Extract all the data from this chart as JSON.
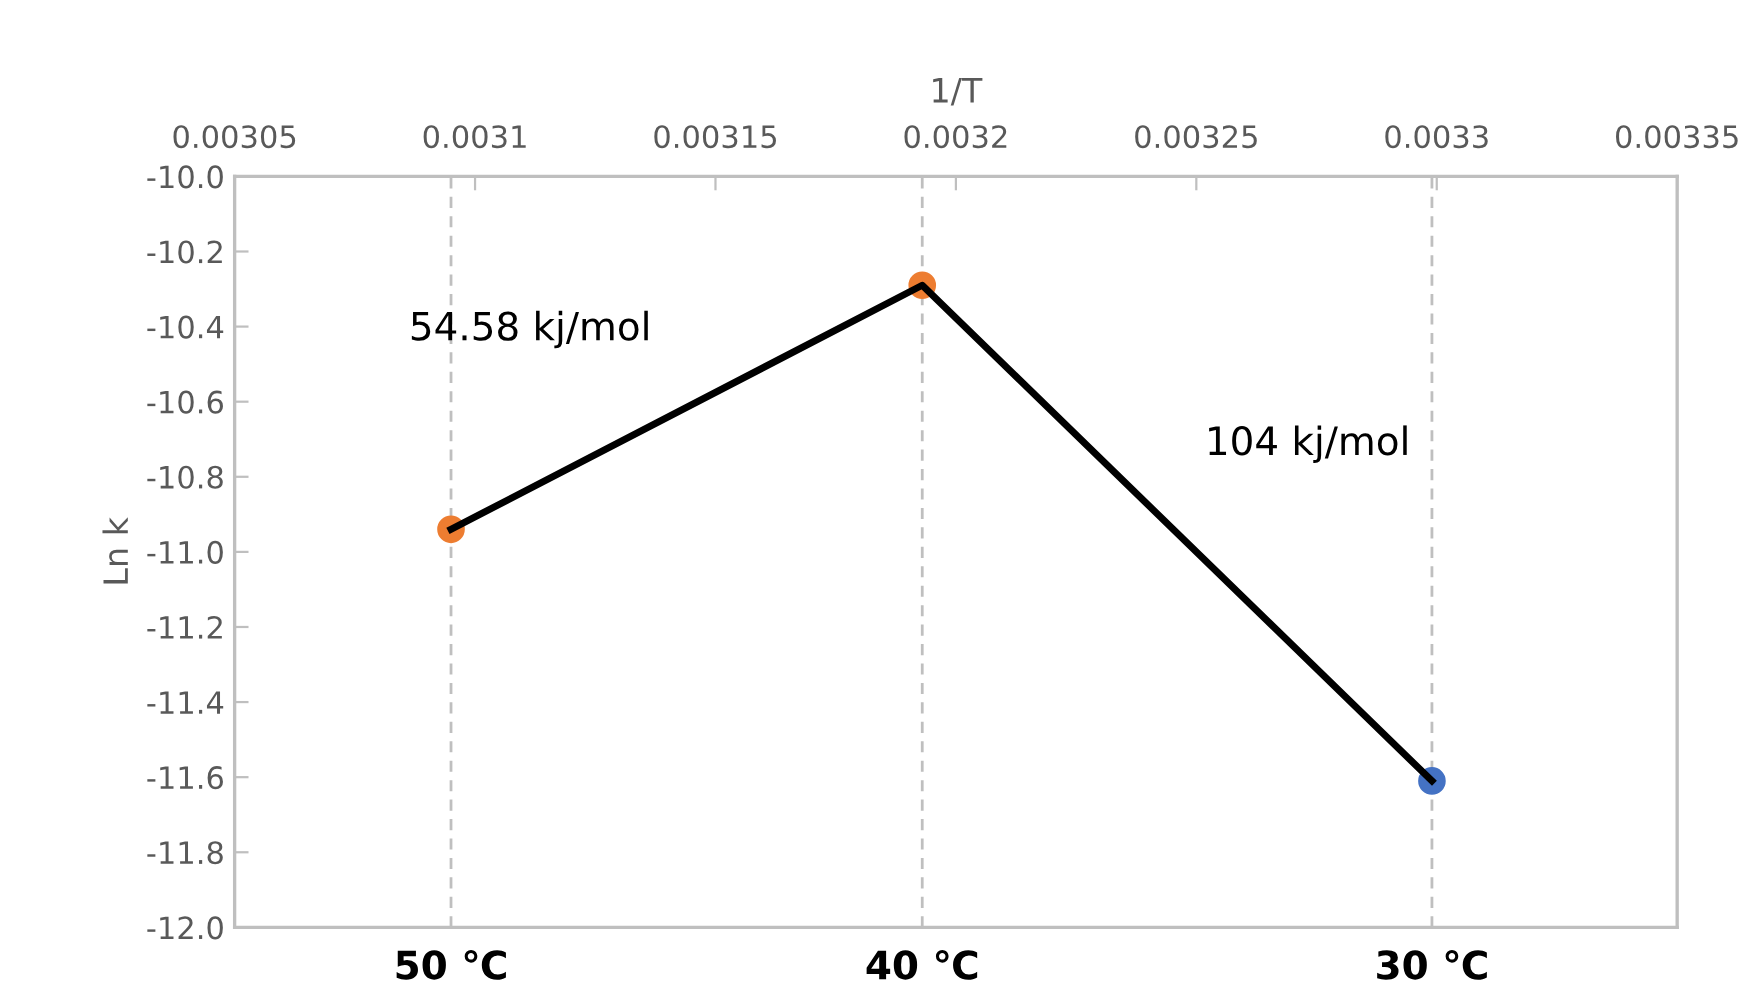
{
  "chart_data": {
    "type": "line",
    "xlabel": "1/T",
    "ylabel": "Ln k",
    "xlim": [
      0.00305,
      0.00335
    ],
    "xticks": [
      0.00305,
      0.0031,
      0.00315,
      0.0032,
      0.00325,
      0.0033,
      0.00335
    ],
    "ylim": [
      -12,
      -10
    ],
    "yticks": [
      {
        "value": -12,
        "label": "-12.0"
      },
      {
        "value": -11.8,
        "label": "-11.8"
      },
      {
        "value": -11.6,
        "label": "-11.6"
      },
      {
        "value": -11.4,
        "label": "-11.4"
      },
      {
        "value": -11.2,
        "label": "-11.2"
      },
      {
        "value": -11,
        "label": "-11.0"
      },
      {
        "value": -10.8,
        "label": "-10.8"
      },
      {
        "value": -10.6,
        "label": "-10.6"
      },
      {
        "value": -10.4,
        "label": "-10.4"
      },
      {
        "value": -10.2,
        "label": "-10.2"
      },
      {
        "value": -10,
        "label": "-10.0"
      }
    ],
    "series": [
      {
        "color": "#000000",
        "x": [
          0.003095,
          0.003193,
          0.003299
        ],
        "values": [
          -10.94,
          -10.29,
          -11.61
        ],
        "colors": [
          "#ed7d31",
          "#ed7d31",
          "#4472c4"
        ]
      }
    ],
    "marker": "circle",
    "line_style": "solid",
    "grid": false,
    "ref_lines": [
      {
        "axis": "x",
        "value": 0.003095,
        "label": "50 ℃",
        "color": "#bfbfbf",
        "line_style": "dashed"
      },
      {
        "axis": "x",
        "value": 0.003193,
        "label": "40 ℃",
        "color": "#bfbfbf",
        "line_style": "dashed"
      },
      {
        "axis": "x",
        "value": 0.003299,
        "label": "30 ℃",
        "color": "#bfbfbf",
        "line_style": "dashed"
      }
    ],
    "annotations": [
      "54.58 kj/mol",
      "104 kj/mol"
    ]
  }
}
